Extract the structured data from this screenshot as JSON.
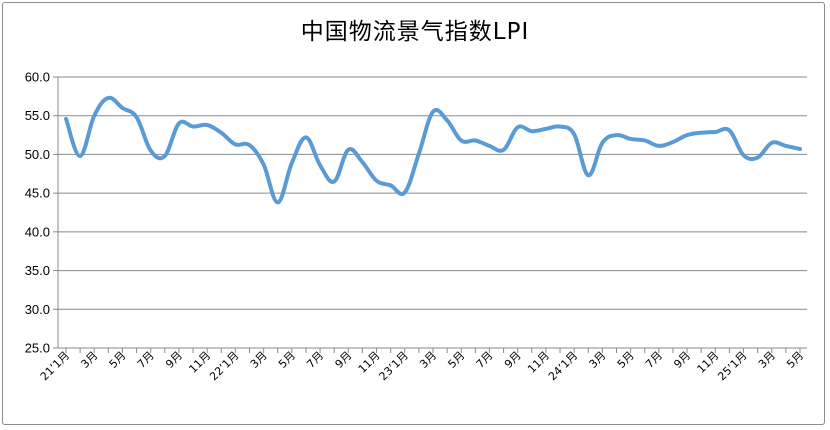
{
  "chart_data": {
    "type": "line",
    "title": "中国物流景气指数LPI",
    "xlabel": "",
    "ylabel": "",
    "ylim": [
      25.0,
      60.0
    ],
    "yticks": [
      "25.0",
      "30.0",
      "35.0",
      "40.0",
      "45.0",
      "50.0",
      "55.0",
      "60.0"
    ],
    "grid": true,
    "legend": "none",
    "x_tick_labels": [
      "21’1月",
      "3月",
      "5月",
      "7月",
      "9月",
      "11月",
      "22’1月",
      "3月",
      "5月",
      "7月",
      "9月",
      "11月",
      "23’1月",
      "3月",
      "5月",
      "7月",
      "9月",
      "11月",
      "24’1月",
      "3月",
      "5月",
      "7月",
      "9月",
      "11月",
      "25’1月",
      "3月",
      "5月"
    ],
    "x": [
      "2021-01",
      "2021-02",
      "2021-03",
      "2021-04",
      "2021-05",
      "2021-06",
      "2021-07",
      "2021-08",
      "2021-09",
      "2021-10",
      "2021-11",
      "2021-12",
      "2022-01",
      "2022-02",
      "2022-03",
      "2022-04",
      "2022-05",
      "2022-06",
      "2022-07",
      "2022-08",
      "2022-09",
      "2022-10",
      "2022-11",
      "2022-12",
      "2023-01",
      "2023-02",
      "2023-03",
      "2023-04",
      "2023-05",
      "2023-06",
      "2023-07",
      "2023-08",
      "2023-09",
      "2023-10",
      "2023-11",
      "2023-12",
      "2024-01",
      "2024-02",
      "2024-03",
      "2024-04",
      "2024-05",
      "2024-06",
      "2024-07",
      "2024-08",
      "2024-09",
      "2024-10",
      "2024-11",
      "2024-12",
      "2025-01",
      "2025-02",
      "2025-03",
      "2025-04",
      "2025-05"
    ],
    "series": [
      {
        "name": "",
        "color": "#5b9bd5",
        "values": [
          54.6,
          49.8,
          55.0,
          57.3,
          56.0,
          54.8,
          50.5,
          49.8,
          54.0,
          53.6,
          53.8,
          52.8,
          51.3,
          51.2,
          48.7,
          43.8,
          48.9,
          52.2,
          48.6,
          46.5,
          50.6,
          49.0,
          46.6,
          46.0,
          45.1,
          50.1,
          55.5,
          54.4,
          51.8,
          51.8,
          51.1,
          50.6,
          53.5,
          53.0,
          53.3,
          53.6,
          52.6,
          47.3,
          51.5,
          52.5,
          52.0,
          51.8,
          51.1,
          51.6,
          52.5,
          52.8,
          52.9,
          53.1,
          49.9,
          49.6,
          51.5,
          51.1,
          50.7
        ]
      }
    ]
  }
}
